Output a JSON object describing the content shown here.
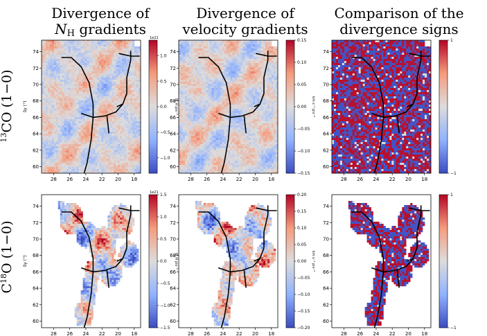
{
  "figure": {
    "columns": [
      {
        "line1": "Divergence of",
        "line2_main": "N",
        "line2_sub": "H",
        "line2_rest": " gradients",
        "italic_main": true
      },
      {
        "line1": "Divergence of",
        "line2_main": "velocity gradients",
        "line2_sub": "",
        "line2_rest": "",
        "italic_main": false
      },
      {
        "line1": "Comparison of the",
        "line2_main": "divergence signs",
        "line2_sub": "",
        "line2_rest": "",
        "italic_main": false
      }
    ],
    "rows": [
      {
        "sup": "13",
        "text": "CO (1−0)",
        "pre": ""
      },
      {
        "sup": "18",
        "text": "O (1−0)",
        "pre": "C"
      }
    ]
  },
  "chart_data": [
    {
      "type": "heatmap",
      "row": 0,
      "col": 0,
      "ylabel": "δy (°)",
      "xticks": [
        28,
        26,
        24,
        22,
        20,
        18
      ],
      "yticks": [
        60,
        62,
        64,
        66,
        68,
        70,
        72,
        74
      ],
      "xlim": [
        29.5,
        17.2
      ],
      "ylim": [
        59.2,
        75.4
      ],
      "colorbar": {
        "ticks": [
          -1.0,
          -0.5,
          0.0,
          0.5,
          1.0
        ],
        "tick_labels": [
          "−1.0",
          "−0.5",
          "0.0",
          "0.5",
          "1.0"
        ],
        "range": [
          -1.3,
          1.3
        ],
        "exponent": "1e21",
        "label": "N_H pix⁻²"
      }
    },
    {
      "type": "heatmap",
      "row": 0,
      "col": 1,
      "xticks": [
        28,
        26,
        24,
        22,
        20,
        18
      ],
      "yticks": [
        60,
        62,
        64,
        66,
        68,
        70,
        72,
        74
      ],
      "xlim": [
        29.5,
        17.2
      ],
      "ylim": [
        59.2,
        75.4
      ],
      "colorbar": {
        "ticks": [
          -0.15,
          -0.1,
          -0.05,
          0.0,
          0.05,
          0.1,
          0.15
        ],
        "tick_labels": [
          "−0.15",
          "−0.10",
          "−0.05",
          "0.00",
          "0.05",
          "0.10",
          "0.15"
        ],
        "range": [
          -0.15,
          0.15
        ],
        "label": "km s⁻¹ pix⁻²"
      }
    },
    {
      "type": "heatmap",
      "row": 0,
      "col": 2,
      "xticks": [
        28,
        26,
        24,
        22,
        20,
        18
      ],
      "yticks": [
        60,
        62,
        64,
        66,
        68,
        70,
        72,
        74
      ],
      "xlim": [
        29.5,
        17.2
      ],
      "ylim": [
        59.2,
        75.4
      ],
      "colorbar": {
        "ticks": [
          -1,
          1
        ],
        "tick_labels": [
          "−1",
          "1"
        ],
        "range": [
          -1,
          1
        ]
      }
    },
    {
      "type": "heatmap",
      "row": 1,
      "col": 0,
      "ylabel": "δy (°)",
      "xticks": [
        28,
        26,
        24,
        22,
        20,
        18
      ],
      "yticks": [
        60,
        62,
        64,
        66,
        68,
        70,
        72,
        74
      ],
      "xlim": [
        29.5,
        17.2
      ],
      "ylim": [
        59.2,
        75.4
      ],
      "colorbar": {
        "ticks": [
          -1.5,
          -1.0,
          -0.5,
          0.0,
          0.5,
          1.0,
          1.5
        ],
        "tick_labels": [
          "−1.5",
          "−1.0",
          "−0.5",
          "0.0",
          "0.5",
          "1.0",
          "1.5"
        ],
        "range": [
          -1.5,
          1.5
        ],
        "exponent": "1e21",
        "label": "N_H pix⁻²"
      }
    },
    {
      "type": "heatmap",
      "row": 1,
      "col": 1,
      "xticks": [
        28,
        26,
        24,
        22,
        20,
        18
      ],
      "yticks": [
        60,
        62,
        64,
        66,
        68,
        70,
        72,
        74
      ],
      "xlim": [
        29.5,
        17.2
      ],
      "ylim": [
        59.2,
        75.4
      ],
      "colorbar": {
        "ticks": [
          -0.2,
          -0.15,
          -0.1,
          -0.05,
          0.0,
          0.05,
          0.1,
          0.15,
          0.2
        ],
        "tick_labels": [
          "−0.20",
          "−0.15",
          "−0.10",
          "−0.05",
          "0.00",
          "0.05",
          "0.10",
          "0.15",
          "0.20"
        ],
        "range": [
          -0.2,
          0.2
        ],
        "label": "km s⁻¹ pix⁻²"
      }
    },
    {
      "type": "heatmap",
      "row": 1,
      "col": 2,
      "xticks": [
        28,
        26,
        24,
        22,
        20,
        18
      ],
      "yticks": [
        60,
        62,
        64,
        66,
        68,
        70,
        72,
        74
      ],
      "xlim": [
        29.5,
        17.2
      ],
      "ylim": [
        59.2,
        75.4
      ],
      "colorbar": {
        "ticks": [
          -1,
          1
        ],
        "tick_labels": [
          "−1",
          "1"
        ],
        "range": [
          -1,
          1
        ]
      }
    }
  ],
  "colors": {
    "negative": "#3b4cc0",
    "neutral": "#dddcdc",
    "positive": "#b40426",
    "filament": "#000000"
  }
}
